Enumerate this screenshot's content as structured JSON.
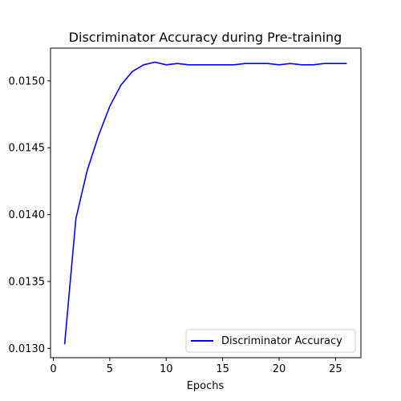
{
  "chart_data": {
    "type": "line",
    "title": "Discriminator Accuracy during Pre-training",
    "xlabel": "Epochs",
    "ylabel": "",
    "xlim": [
      -0.25,
      27.25
    ],
    "ylim": [
      0.01293,
      0.015245
    ],
    "x_ticks": [
      0,
      5,
      10,
      15,
      20,
      25
    ],
    "y_ticks": [
      0.013,
      0.0135,
      0.014,
      0.0145,
      0.015
    ],
    "y_tick_labels": [
      "0.0130",
      "0.0135",
      "0.0140",
      "0.0145",
      "0.0150"
    ],
    "grid": false,
    "legend": {
      "placement": "lower right",
      "entries": [
        "Discriminator Accuracy"
      ]
    },
    "series": [
      {
        "name": "Discriminator Accuracy",
        "color": "#0000ff",
        "x": [
          1,
          2,
          3,
          4,
          5,
          6,
          7,
          8,
          9,
          10,
          11,
          12,
          13,
          14,
          15,
          16,
          17,
          18,
          19,
          20,
          21,
          22,
          23,
          24,
          25,
          26
        ],
        "values": [
          0.01303,
          0.01397,
          0.01433,
          0.01459,
          0.01481,
          0.01497,
          0.01507,
          0.01512,
          0.01514,
          0.01512,
          0.01513,
          0.01512,
          0.01512,
          0.01512,
          0.01512,
          0.01512,
          0.01513,
          0.01513,
          0.01513,
          0.01512,
          0.01513,
          0.01512,
          0.01512,
          0.01513,
          0.01513,
          0.01513
        ]
      }
    ]
  }
}
